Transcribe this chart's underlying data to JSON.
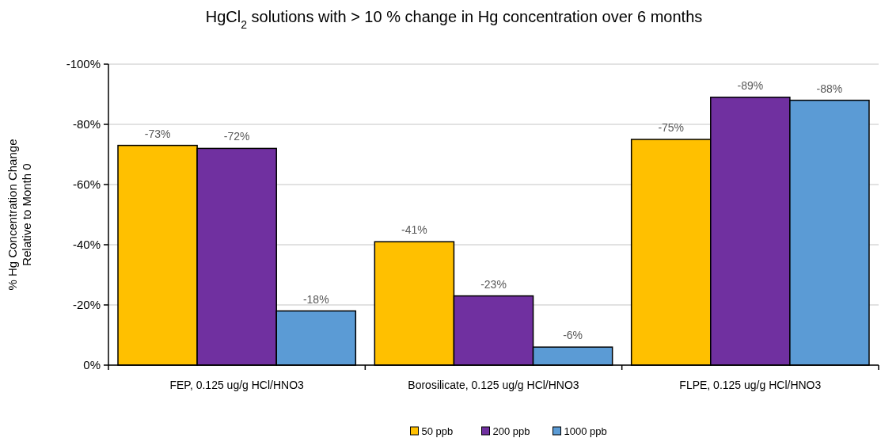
{
  "chart_data": {
    "type": "bar",
    "title": "HgCl$_{2}$ solutions with > 10 % change in Hg concentration over 6 months",
    "ylabel": "% Hg Concentration Change\nRelative to Month 0",
    "categories": [
      "FEP, 0.125 ug/g HCl/HNO3",
      "Borosilicate, 0.125 ug/g HCl/HNO3",
      "FLPE, 0.125 ug/g HCl/HNO3"
    ],
    "series": [
      {
        "name": "50 ppb",
        "color": "#ffc000",
        "values": [
          -73,
          -41,
          -75
        ],
        "value_labels": [
          "-73%",
          "-41%",
          "-75%"
        ]
      },
      {
        "name": "200 ppb",
        "color": "#7030a0",
        "values": [
          -72,
          -23,
          -89
        ],
        "value_labels": [
          "-72%",
          "-23%",
          "-89%"
        ]
      },
      {
        "name": "1000 ppb",
        "color": "#5b9bd5",
        "values": [
          -18,
          -6,
          -88
        ],
        "value_labels": [
          "-18%",
          "-6%",
          "-88%"
        ]
      }
    ],
    "ylim": [
      0,
      -100
    ],
    "yticks": [
      {
        "value": 0,
        "label": "0%"
      },
      {
        "value": -20,
        "label": "-20%"
      },
      {
        "value": -40,
        "label": "-40%"
      },
      {
        "value": -60,
        "label": "-60%"
      },
      {
        "value": -80,
        "label": "-80%"
      },
      {
        "value": -100,
        "label": "-100%"
      }
    ],
    "grid": "y",
    "legend": "bottom"
  }
}
